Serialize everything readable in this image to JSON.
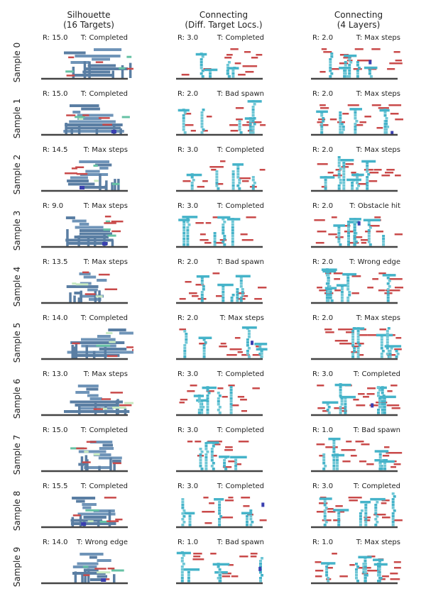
{
  "columns": [
    {
      "title": [
        "Silhouette",
        "(16 Targets)"
      ]
    },
    {
      "title": [
        "Connecting",
        "(Diff. Target Locs.)"
      ]
    },
    {
      "title": [
        "Connecting",
        "(4 Layers)"
      ]
    }
  ],
  "rows": [
    {
      "label": "Sample 0",
      "cells": [
        {
          "reward": "R: 15.0",
          "termination": "T: Completed"
        },
        {
          "reward": "R: 3.0",
          "termination": "T: Completed"
        },
        {
          "reward": "R: 2.0",
          "termination": "T: Max steps"
        }
      ]
    },
    {
      "label": "Sample 1",
      "cells": [
        {
          "reward": "R: 15.0",
          "termination": "T: Completed"
        },
        {
          "reward": "R: 2.0",
          "termination": "T: Bad spawn"
        },
        {
          "reward": "R: 2.0",
          "termination": "T: Max steps"
        }
      ]
    },
    {
      "label": "Sample 2",
      "cells": [
        {
          "reward": "R: 14.5",
          "termination": "T: Max steps"
        },
        {
          "reward": "R: 3.0",
          "termination": "T: Completed"
        },
        {
          "reward": "R: 2.0",
          "termination": "T: Max steps"
        }
      ]
    },
    {
      "label": "Sample 3",
      "cells": [
        {
          "reward": "R: 9.0",
          "termination": "T: Max steps"
        },
        {
          "reward": "R: 3.0",
          "termination": "T: Completed"
        },
        {
          "reward": "R: 2.0",
          "termination": "T: Obstacle hit"
        }
      ]
    },
    {
      "label": "Sample 4",
      "cells": [
        {
          "reward": "R: 13.5",
          "termination": "T: Max steps"
        },
        {
          "reward": "R: 2.0",
          "termination": "T: Bad spawn"
        },
        {
          "reward": "R: 2.0",
          "termination": "T: Wrong edge"
        }
      ]
    },
    {
      "label": "Sample 5",
      "cells": [
        {
          "reward": "R: 14.0",
          "termination": "T: Completed"
        },
        {
          "reward": "R: 2.0",
          "termination": "T: Max steps"
        },
        {
          "reward": "R: 2.0",
          "termination": "T: Max steps"
        }
      ]
    },
    {
      "label": "Sample 6",
      "cells": [
        {
          "reward": "R: 13.0",
          "termination": "T: Max steps"
        },
        {
          "reward": "R: 3.0",
          "termination": "T: Completed"
        },
        {
          "reward": "R: 3.0",
          "termination": "T: Completed"
        }
      ]
    },
    {
      "label": "Sample 7",
      "cells": [
        {
          "reward": "R: 15.0",
          "termination": "T: Completed"
        },
        {
          "reward": "R: 3.0",
          "termination": "T: Completed"
        },
        {
          "reward": "R: 1.0",
          "termination": "T: Bad spawn"
        }
      ]
    },
    {
      "label": "Sample 8",
      "cells": [
        {
          "reward": "R: 15.5",
          "termination": "T: Completed"
        },
        {
          "reward": "R: 3.0",
          "termination": "T: Completed"
        },
        {
          "reward": "R: 3.0",
          "termination": "T: Completed"
        }
      ]
    },
    {
      "label": "Sample 9",
      "cells": [
        {
          "reward": "R: 14.0",
          "termination": "T: Wrong edge"
        },
        {
          "reward": "R: 1.0",
          "termination": "T: Bad spawn"
        },
        {
          "reward": "R: 1.0",
          "termination": "T: Max steps"
        }
      ]
    }
  ],
  "colors": {
    "silhouette_block": "#6f94b8",
    "silhouette_block_dark": "#5a7ea3",
    "connecting_block": "#45b3c9",
    "connecting_block_light": "#6fc7d6",
    "target": "#c94a4a",
    "highlight_green": "#66c2a4",
    "highlight_light": "#c7e9c0",
    "agent_dark_blue": "#3a3fb0",
    "ground": "#444444"
  }
}
